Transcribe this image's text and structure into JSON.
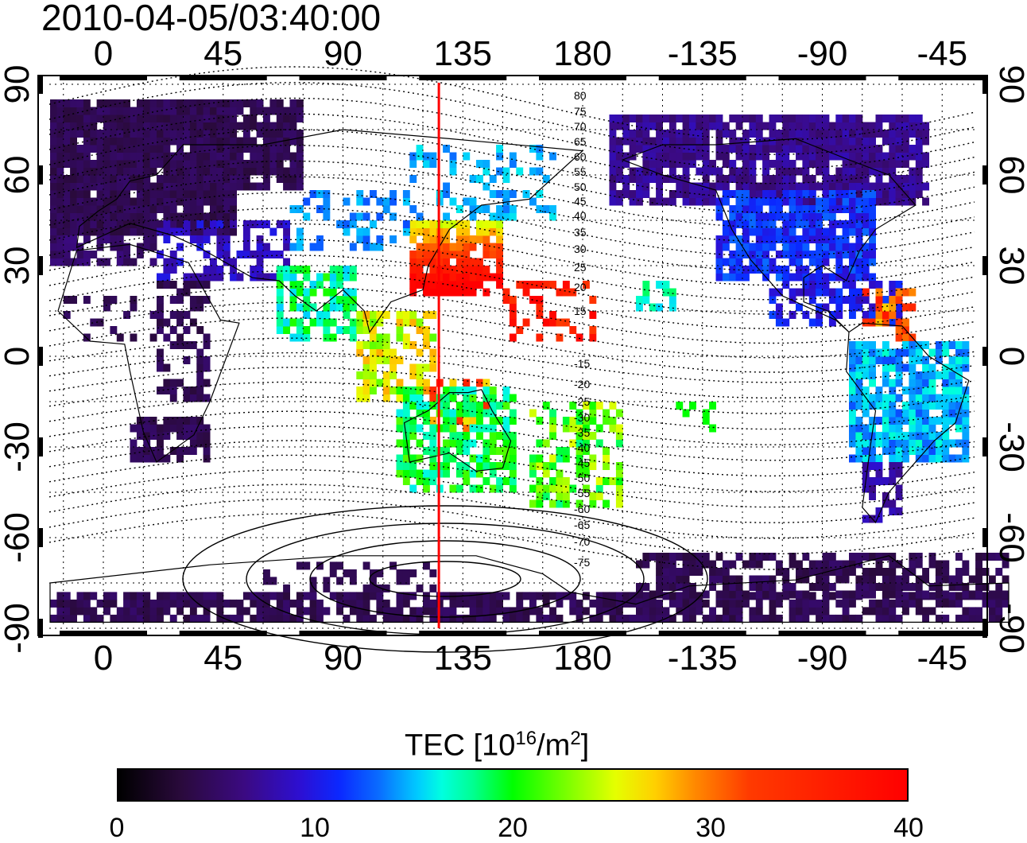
{
  "timestamp": "2010-04-05/03:40:00",
  "map": {
    "top_ticks": [
      "0",
      "45",
      "90",
      "135",
      "180",
      "-135",
      "-90",
      "-45"
    ],
    "bottom_ticks": [
      "0",
      "45",
      "90",
      "135",
      "180",
      "-135",
      "-90",
      "-45"
    ],
    "left_ticks": [
      "90",
      "60",
      "30",
      "0",
      "-30",
      "-60",
      "-90"
    ],
    "right_ticks": [
      "90",
      "60",
      "30",
      "0",
      "-30",
      "-60",
      "-90"
    ],
    "contour_labels": [
      "80",
      "75",
      "70",
      "65",
      "60",
      "55",
      "50",
      "45",
      "40",
      "35",
      "30",
      "25",
      "20",
      "15",
      "-15",
      "-20",
      "-25",
      "-30",
      "-35",
      "-40",
      "-45",
      "-50",
      "-55",
      "-60",
      "-65",
      "-70",
      "-75"
    ],
    "meridian_longitude": 126,
    "meridian_color": "#ff0000"
  },
  "colorbar": {
    "title": "TEC  [10",
    "title_exp": "16",
    "title_mid": "/m",
    "title_exp2": "2",
    "title_end": "]",
    "tick_labels": [
      "0",
      "10",
      "20",
      "30",
      "40"
    ],
    "min": 0,
    "max": 40
  }
}
